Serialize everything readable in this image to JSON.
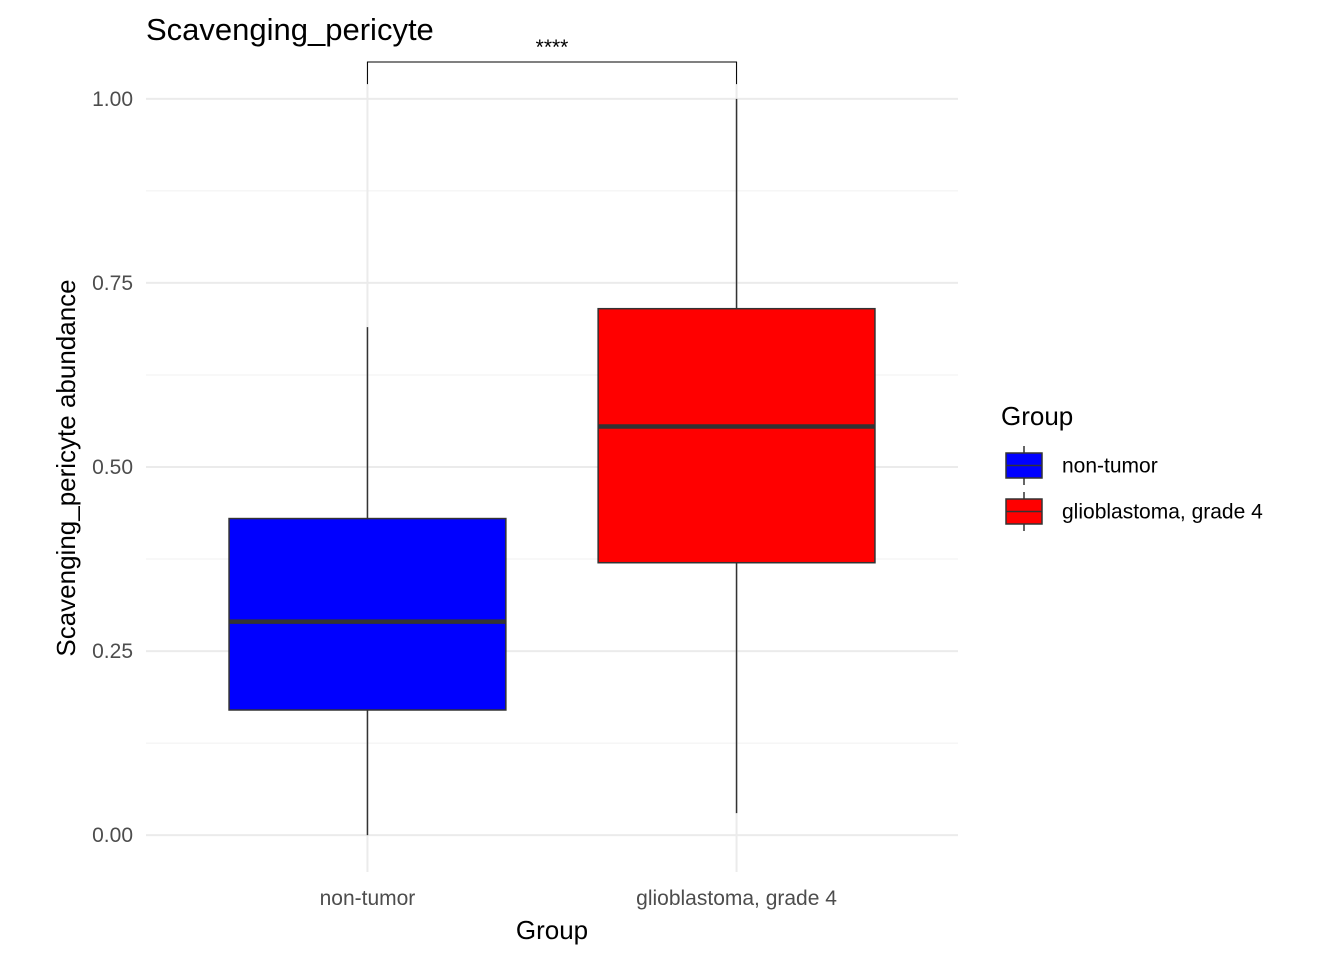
{
  "chart_data": {
    "type": "boxplot",
    "title": "Scavenging_pericyte",
    "xlabel": "Group",
    "ylabel": "Scavenging_pericyte abundance",
    "ylim": [
      -0.05,
      1.05
    ],
    "yticks": [
      0.0,
      0.25,
      0.5,
      0.75,
      1.0
    ],
    "ytick_labels": [
      "0.00",
      "0.25",
      "0.50",
      "0.75",
      "1.00"
    ],
    "grid": true,
    "categories": [
      "non-tumor",
      "glioblastoma, grade 4"
    ],
    "boxes": [
      {
        "category": "non-tumor",
        "whisker_low": 0.0,
        "q1": 0.17,
        "median": 0.29,
        "q3": 0.43,
        "whisker_high": 0.69,
        "color": "#0000ff"
      },
      {
        "category": "glioblastoma, grade 4",
        "whisker_low": 0.03,
        "q1": 0.37,
        "median": 0.555,
        "q3": 0.715,
        "whisker_high": 1.0,
        "color": "#ff0000"
      }
    ],
    "significance": {
      "label": "****",
      "from": "non-tumor",
      "to": "glioblastoma, grade 4",
      "y": 1.05,
      "tip_bottom": 1.02
    },
    "legend": {
      "title": "Group",
      "position": "right",
      "items": [
        {
          "label": "non-tumor",
          "color": "#0000ff"
        },
        {
          "label": "glioblastoma, grade 4",
          "color": "#ff0000"
        }
      ]
    }
  }
}
